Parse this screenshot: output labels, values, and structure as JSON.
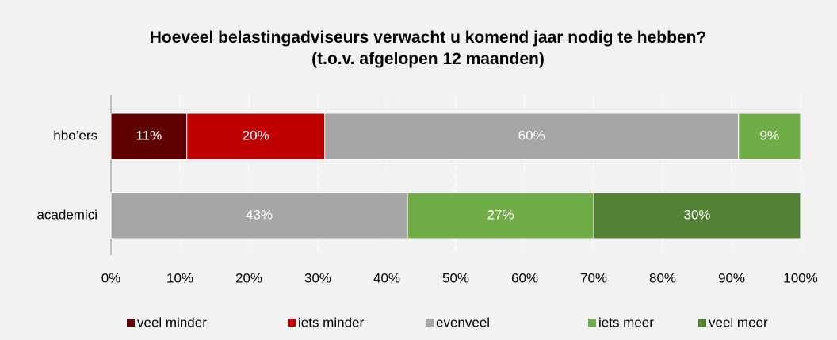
{
  "chart_data": {
    "type": "stacked-barh",
    "title": "Hoeveel belastingadviseurs verwacht u komend jaar nodig te hebben? (t.o.v. afgelopen 12 maanden)",
    "categories": [
      "hbo’ers",
      "academici"
    ],
    "series": [
      {
        "name": "veel minder",
        "color": "#600000",
        "values": [
          11,
          null
        ],
        "value_labels": [
          "11%",
          null
        ]
      },
      {
        "name": "iets minder",
        "color": "#c00000",
        "values": [
          20,
          null
        ],
        "value_labels": [
          "20%",
          null
        ]
      },
      {
        "name": "evenveel",
        "color": "#a6a6a6",
        "values": [
          60,
          43
        ],
        "value_labels": [
          "60%",
          "43%"
        ]
      },
      {
        "name": "iets meer",
        "color": "#70ad47",
        "values": [
          9,
          27
        ],
        "value_labels": [
          "9%",
          "27%"
        ]
      },
      {
        "name": "veel meer",
        "color": "#548235",
        "values": [
          null,
          30
        ],
        "value_labels": [
          null,
          "30%"
        ]
      }
    ],
    "xlim": [
      0,
      100
    ],
    "xticks": [
      {
        "value": 0,
        "label": "0%"
      },
      {
        "value": 10,
        "label": "10%"
      },
      {
        "value": 20,
        "label": "20%"
      },
      {
        "value": 30,
        "label": "30%"
      },
      {
        "value": 40,
        "label": "40%"
      },
      {
        "value": 50,
        "label": "50%"
      },
      {
        "value": 60,
        "label": "60%"
      },
      {
        "value": 70,
        "label": "70%"
      },
      {
        "value": 80,
        "label": "80%"
      },
      {
        "value": 90,
        "label": "90%"
      },
      {
        "value": 100,
        "label": "100%"
      }
    ],
    "grid": true,
    "legend": "bottom"
  }
}
